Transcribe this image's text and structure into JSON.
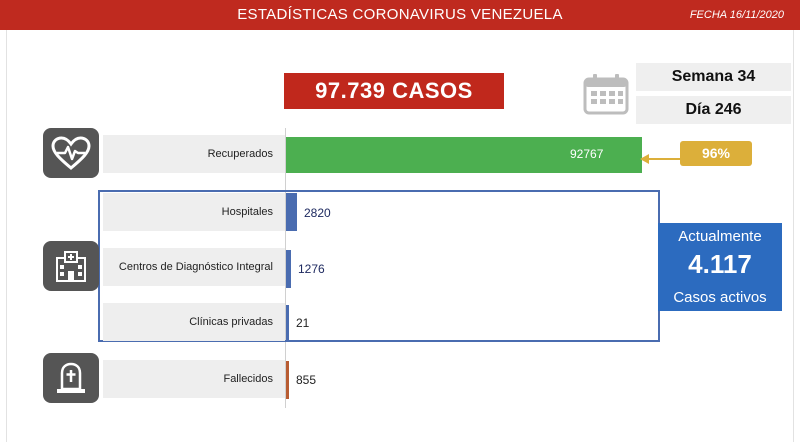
{
  "header": {
    "title": "ESTADÍSTICAS CORONAVIRUS VENEZUELA",
    "date": "FECHA 16/11/2020"
  },
  "total_cases": "97.739 CASOS",
  "week": "Semana 34",
  "day": "Día 246",
  "recovered_percent": "96%",
  "active_box": {
    "line1": "Actualmente",
    "value": "4.117",
    "line2": "Casos activos"
  },
  "icons": [
    "calendar-icon",
    "heart-pulse-icon",
    "hospital-icon",
    "tombstone-icon"
  ],
  "colors": {
    "header": "#bf2a1f",
    "recovered": "#4caf50",
    "hospitals": "#4a6cb0",
    "deceased": "#b85c32",
    "percent_badge": "#dcaf3a",
    "active_box": "#2c6bbf"
  },
  "chart_data": {
    "type": "bar",
    "orientation": "horizontal",
    "categories": [
      "Recuperados",
      "Hospitales",
      "Centros de Diagnóstico Integral",
      "Clínicas privadas",
      "Fallecidos"
    ],
    "values": [
      92767,
      2820,
      1276,
      21,
      855
    ],
    "value_labels": [
      "92767",
      "2820",
      "1276",
      "21",
      "855"
    ],
    "title": "",
    "xlabel": "",
    "ylabel": "",
    "xlim": [
      0,
      100000
    ],
    "grid": false
  }
}
